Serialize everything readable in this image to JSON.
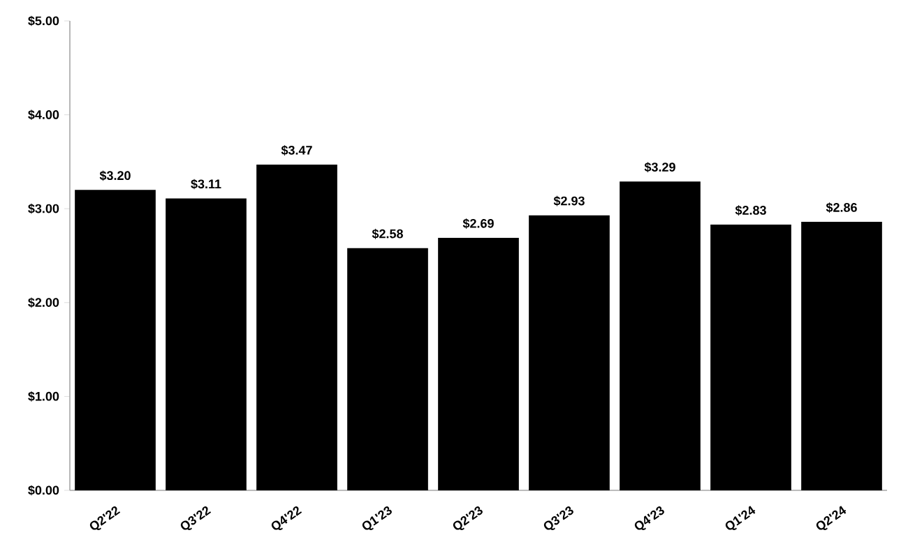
{
  "chart_data": {
    "type": "bar",
    "categories": [
      "Q2'22",
      "Q3'22",
      "Q4'22",
      "Q1'23",
      "Q2'23",
      "Q3'23",
      "Q4'23",
      "Q1'24",
      "Q2'24"
    ],
    "values": [
      3.2,
      3.11,
      3.47,
      2.58,
      2.69,
      2.93,
      3.29,
      2.83,
      2.86
    ],
    "color": "#000000",
    "value_labels": [
      "$3.20",
      "$3.11",
      "$3.47",
      "$2.58",
      "$2.69",
      "$2.93",
      "$3.29",
      "$2.83",
      "$2.86"
    ],
    "ylim": [
      0,
      5
    ],
    "yticks": [
      {
        "value": 0,
        "label": "$0.00"
      },
      {
        "value": 1,
        "label": "$1.00"
      },
      {
        "value": 2,
        "label": "$2.00"
      },
      {
        "value": 3,
        "label": "$3.00"
      },
      {
        "value": 4,
        "label": "$4.00"
      },
      {
        "value": 5,
        "label": "$5.00"
      }
    ]
  }
}
